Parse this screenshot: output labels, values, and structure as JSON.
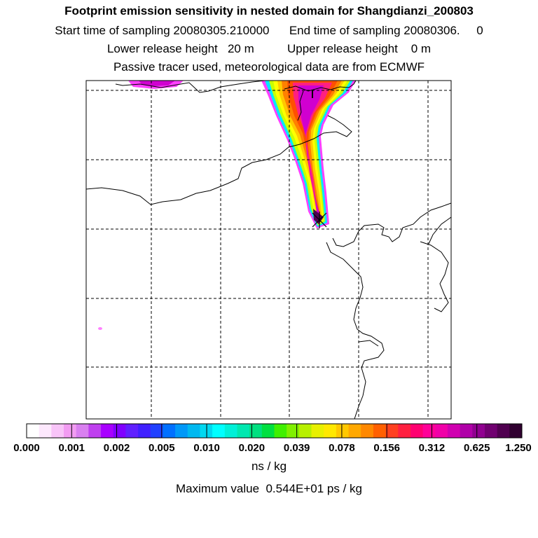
{
  "header": {
    "title": "Footprint emission sensitivity in nested domain for Shangdianzi_200803",
    "start_label": "Start time of sampling 20080305.210000",
    "end_label": "End time of sampling 20080306.     0",
    "lower_label": "Lower release height   20 m",
    "upper_label": "Upper release height    0 m",
    "tracer_line": "Passive tracer used, meteorological data are from ECMWF"
  },
  "legend": {
    "tick_labels": [
      "0.000",
      "0.001",
      "0.002",
      "0.005",
      "0.010",
      "0.020",
      "0.039",
      "0.078",
      "0.156",
      "0.312",
      "0.625",
      "1.250"
    ],
    "colors": [
      "#ffffff",
      "#fde8fd",
      "#f8c4f8",
      "#f29cf2",
      "#d980f0",
      "#bf40ef",
      "#a800ff",
      "#8000ff",
      "#6020ff",
      "#4020ff",
      "#2040ff",
      "#0070ff",
      "#0098f8",
      "#00b8f0",
      "#00d8f0",
      "#00ffff",
      "#00f0d8",
      "#00e8b0",
      "#00e080",
      "#00e040",
      "#40f000",
      "#80f000",
      "#b8f000",
      "#e8f000",
      "#ffe800",
      "#ffc800",
      "#ffa800",
      "#ff8800",
      "#ff6000",
      "#ff4020",
      "#ff2040",
      "#ff0070",
      "#ff0098",
      "#f000a8",
      "#d000b0",
      "#b000a8",
      "#900090",
      "#700070",
      "#500050",
      "#300030"
    ],
    "units": "ns / kg"
  },
  "footer": {
    "max_value": "Maximum value  0.544E+01 ps / kg"
  },
  "map": {
    "receptor_marker": "receptor-star-icon",
    "plume_colors": [
      "#ff40ff",
      "#00e8ff",
      "#c8ff00",
      "#ffff00",
      "#ffc800",
      "#ff8000",
      "#ff5000",
      "#ff2080",
      "#d000d0",
      "#500050"
    ]
  }
}
